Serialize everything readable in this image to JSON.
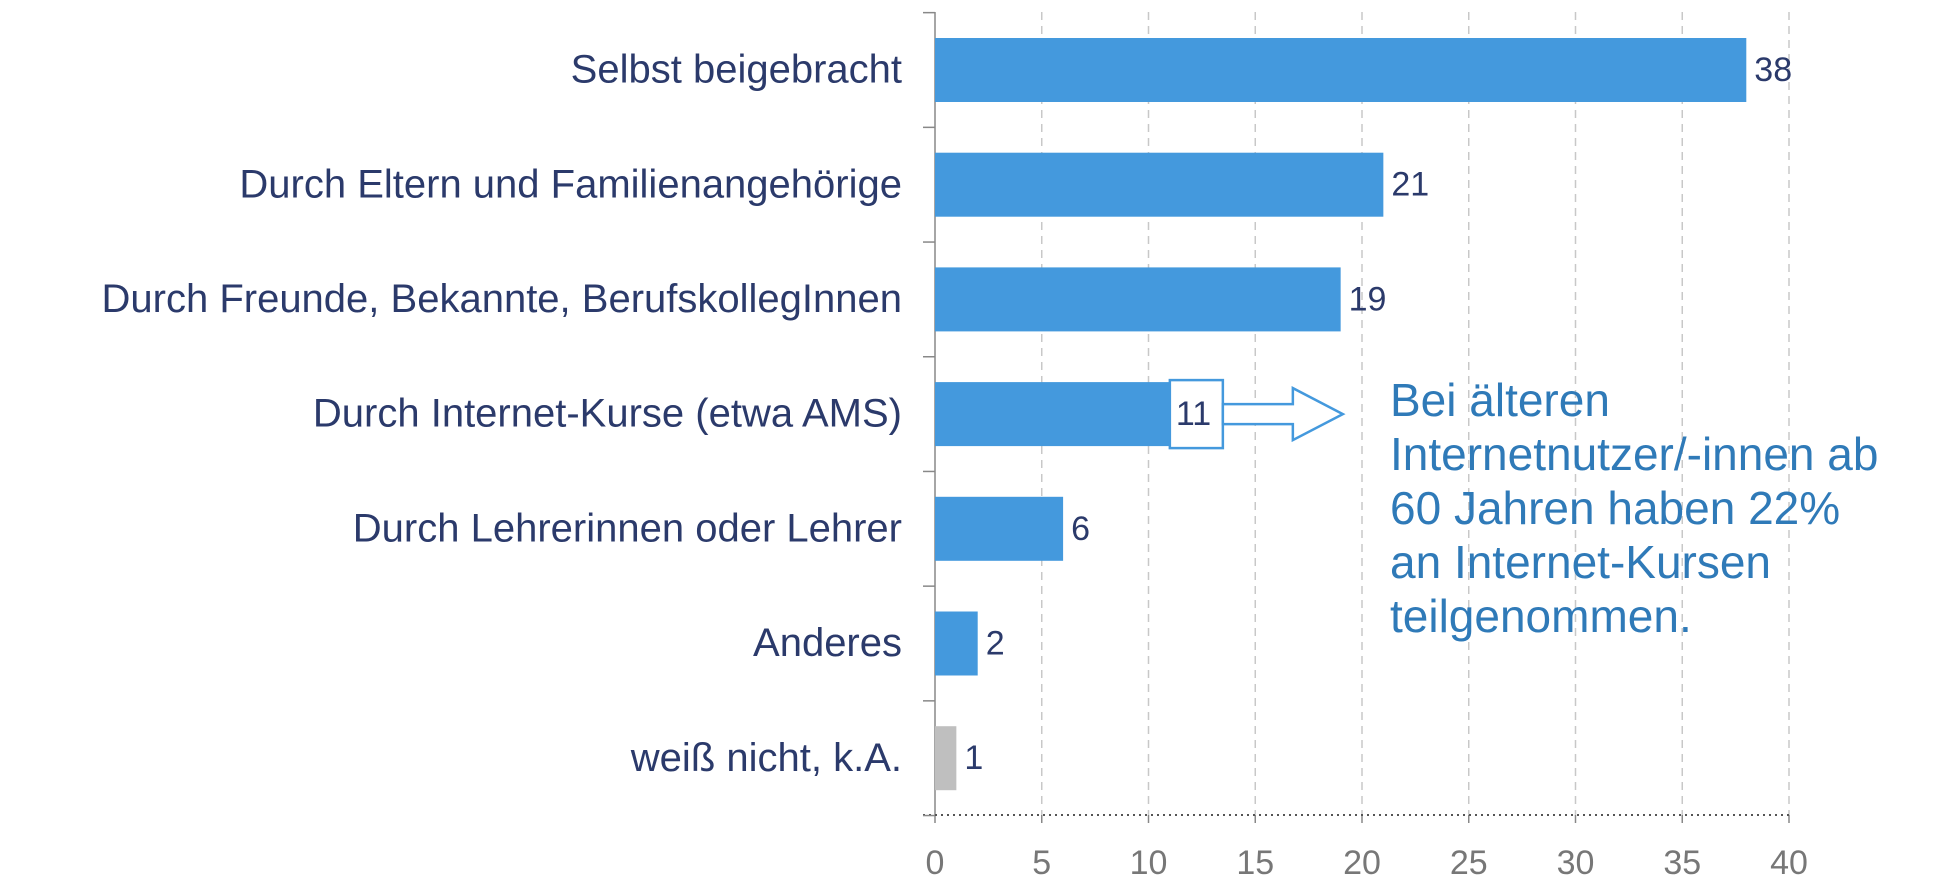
{
  "chart_data": {
    "type": "barh",
    "categories": [
      "Selbst beigebracht",
      "Durch Eltern und Familienangehörige",
      "Durch Freunde, Bekannte, BerufskollegInnen",
      "Durch Internet-Kurse (etwa AMS)",
      "Durch Lehrerinnen oder Lehrer",
      "Anderes",
      "weiß nicht, k.A."
    ],
    "values": [
      38,
      21,
      19,
      11,
      6,
      2,
      1
    ],
    "colors": [
      "#4499dd",
      "#4499dd",
      "#4499dd",
      "#4499dd",
      "#4499dd",
      "#4499dd",
      "#bfbfbf"
    ],
    "xlim": [
      0,
      40
    ],
    "xticks": [
      0,
      5,
      10,
      15,
      20,
      25,
      30,
      35,
      40
    ],
    "grid": true,
    "annotation": [
      "Bei älteren",
      "Internetnutzer/-innen ab",
      "60 Jahren haben 22%",
      "an Internet-Kursen",
      "teilgenommen."
    ]
  }
}
